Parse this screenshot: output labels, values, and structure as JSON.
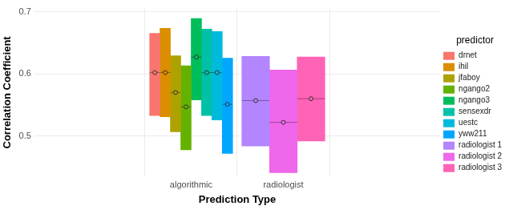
{
  "chart_data": {
    "type": "bar",
    "x_label": "Prediction Type",
    "y_label": "Correlation Coefficient",
    "categories": [
      "algorithmic",
      "radiologist"
    ],
    "legend": "right",
    "legend_title": "predictor",
    "grid": true,
    "ylim": [
      0.435,
      0.705
    ],
    "yticks": [
      0.5,
      0.6,
      0.7
    ],
    "series": [
      {
        "name": "drnet",
        "color": "#F8766D",
        "values": [
          0.602,
          null
        ],
        "low": [
          0.533,
          null
        ],
        "high": [
          0.665,
          null
        ]
      },
      {
        "name": "ihil",
        "color": "#DB8E00",
        "values": [
          0.602,
          null
        ],
        "low": [
          0.531,
          null
        ],
        "high": [
          0.673,
          null
        ]
      },
      {
        "name": "jfaboy",
        "color": "#AEA200",
        "values": [
          0.57,
          null
        ],
        "low": [
          0.507,
          null
        ],
        "high": [
          0.629,
          null
        ]
      },
      {
        "name": "ngango2",
        "color": "#64B200",
        "values": [
          0.547,
          null
        ],
        "low": [
          0.478,
          null
        ],
        "high": [
          0.613,
          null
        ]
      },
      {
        "name": "ngango3",
        "color": "#00BD5C",
        "values": [
          0.627,
          null
        ],
        "low": [
          0.558,
          null
        ],
        "high": [
          0.689,
          null
        ]
      },
      {
        "name": "sensexdr",
        "color": "#00C1A7",
        "values": [
          0.602,
          null
        ],
        "low": [
          0.533,
          null
        ],
        "high": [
          0.672,
          null
        ]
      },
      {
        "name": "uestc",
        "color": "#00BADE",
        "values": [
          0.602,
          null
        ],
        "low": [
          0.526,
          null
        ],
        "high": [
          0.668,
          null
        ]
      },
      {
        "name": "yww211",
        "color": "#00A6FF",
        "values": [
          0.551,
          null
        ],
        "low": [
          0.472,
          null
        ],
        "high": [
          0.625,
          null
        ]
      },
      {
        "name": "radiologist 1",
        "color": "#B385FF",
        "values": [
          null,
          0.557
        ],
        "low": [
          null,
          0.484
        ],
        "high": [
          null,
          0.628
        ]
      },
      {
        "name": "radiologist 2",
        "color": "#EF67EB",
        "values": [
          null,
          0.522
        ],
        "low": [
          null,
          0.441
        ],
        "high": [
          null,
          0.606
        ]
      },
      {
        "name": "radiologist 3",
        "color": "#FF63B6",
        "values": [
          null,
          0.56
        ],
        "low": [
          null,
          0.492
        ],
        "high": [
          null,
          0.627
        ]
      }
    ]
  }
}
